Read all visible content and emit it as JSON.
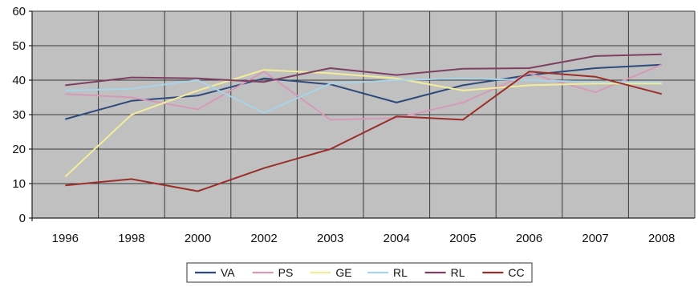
{
  "chart_data": {
    "type": "line",
    "title": "",
    "xlabel": "",
    "ylabel": "",
    "categories": [
      "1996",
      "1998",
      "2000",
      "2002",
      "2003",
      "2004",
      "2005",
      "2006",
      "2007",
      "2008"
    ],
    "ylim": [
      0,
      60
    ],
    "yticks": [
      0,
      10,
      20,
      30,
      40,
      50,
      60
    ],
    "grid": true,
    "legend_position": "bottom",
    "series": [
      {
        "name": "VA",
        "color": "#2e4a7a",
        "values": [
          28.7,
          34.0,
          35.5,
          40.5,
          38.8,
          33.5,
          38.5,
          41.5,
          43.5,
          44.5
        ]
      },
      {
        "name": "PS",
        "color": "#d59ab8",
        "values": [
          36.0,
          35.0,
          31.5,
          42.5,
          28.5,
          29.0,
          33.5,
          42.0,
          36.5,
          44.5
        ]
      },
      {
        "name": "GE",
        "color": "#f2ec9a",
        "values": [
          12.0,
          30.0,
          37.0,
          43.0,
          42.0,
          40.5,
          37.0,
          38.5,
          39.0,
          39.0
        ]
      },
      {
        "name": "RL",
        "color": "#a9d3e8",
        "values": [
          37.0,
          37.5,
          40.0,
          30.5,
          39.0,
          40.0,
          40.5,
          40.0,
          39.5,
          39.5
        ]
      },
      {
        "name": "RL",
        "color": "#7d4063",
        "values": [
          38.5,
          40.8,
          40.5,
          39.5,
          43.5,
          41.5,
          43.3,
          43.5,
          47.0,
          47.5
        ]
      },
      {
        "name": "CC",
        "color": "#9a2f2a",
        "values": [
          9.5,
          11.3,
          7.8,
          14.5,
          20.0,
          29.5,
          28.5,
          42.5,
          41.0,
          36.0
        ]
      }
    ]
  }
}
